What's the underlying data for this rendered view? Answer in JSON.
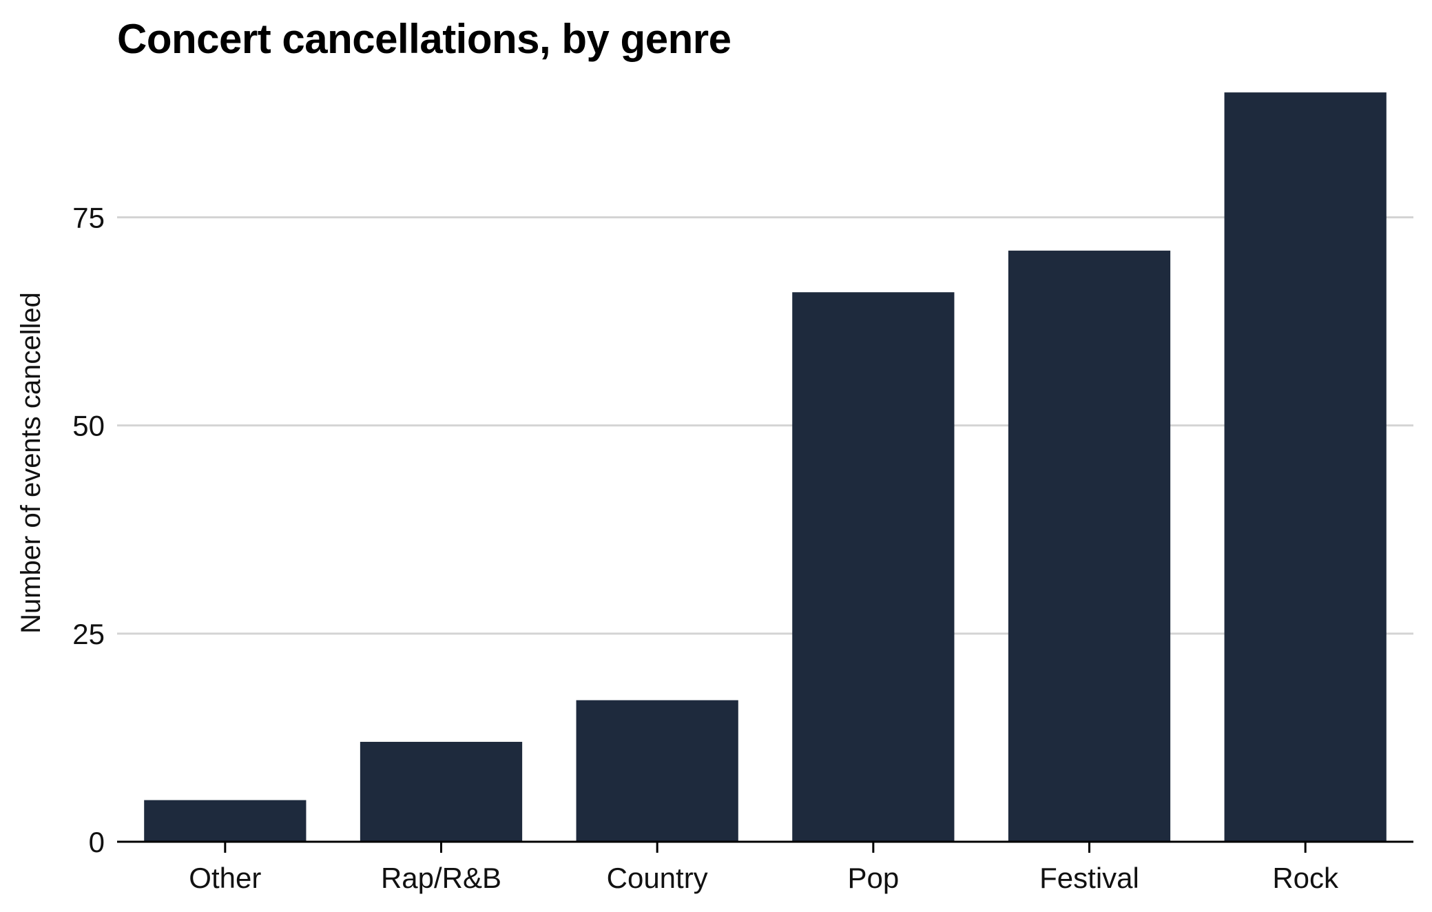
{
  "chart_data": {
    "type": "bar",
    "title": "Concert cancellations, by genre",
    "xlabel": "",
    "ylabel": "Number of events cancelled",
    "categories": [
      "Other",
      "Rap/R&B",
      "Country",
      "Pop",
      "Festival",
      "Rock"
    ],
    "values": [
      5,
      12,
      17,
      66,
      71,
      90
    ],
    "ylim": [
      0,
      92
    ],
    "yticks": [
      0,
      25,
      50,
      75
    ],
    "grid": true,
    "legend": "none",
    "colors": {
      "bar": "#1e2a3d",
      "grid": "#d4d4d4",
      "axis": "#000000"
    }
  }
}
